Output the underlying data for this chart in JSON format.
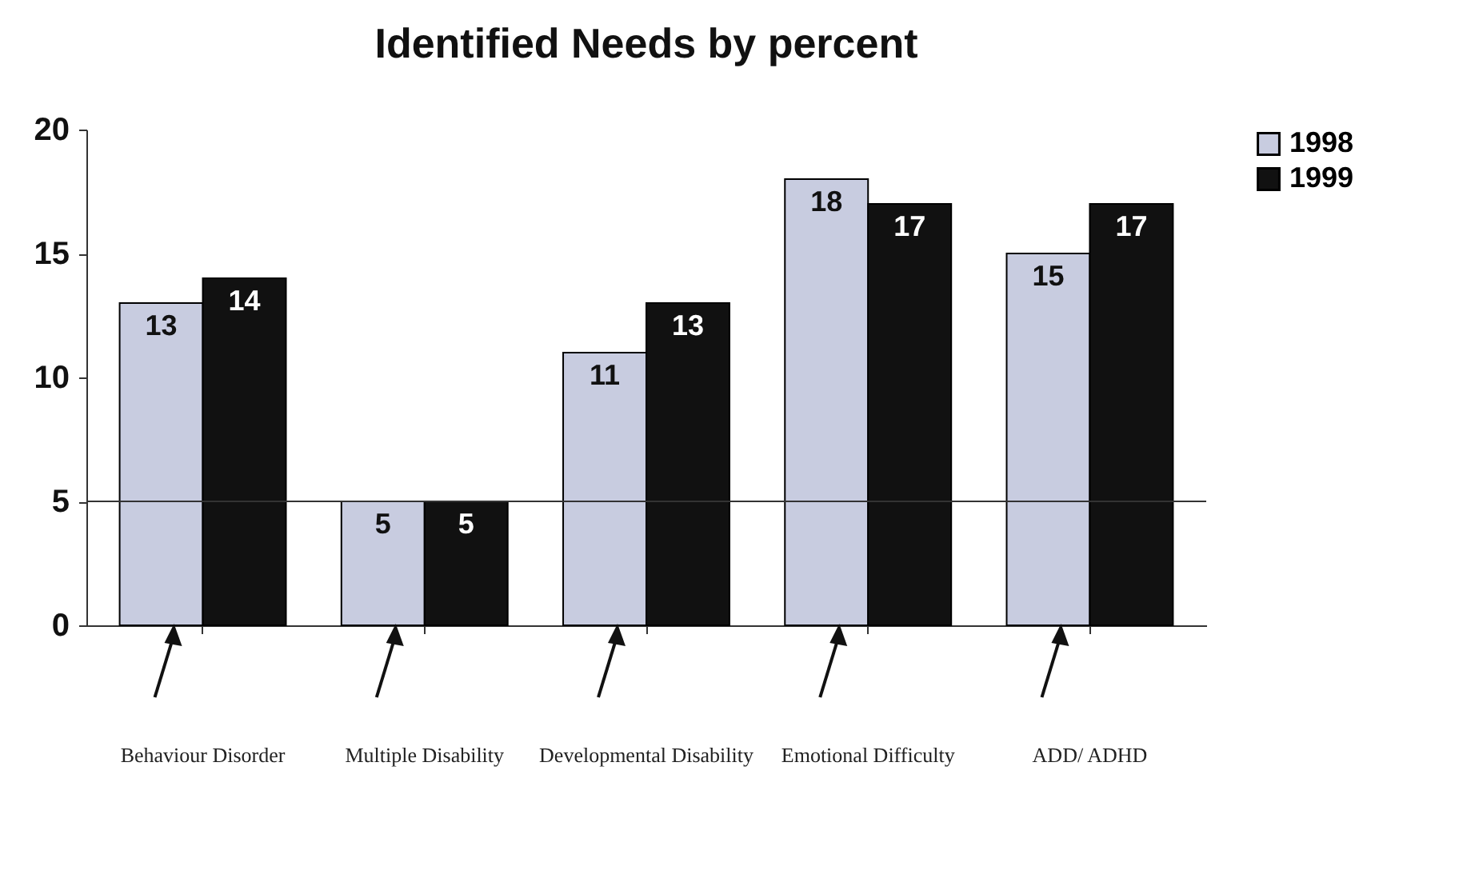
{
  "chart_data": {
    "type": "bar",
    "title": "Identified Needs by percent",
    "categories": [
      "Behaviour Disorder",
      "Multiple Disability",
      "Developmental Disability",
      "Emotional Difficulty",
      "ADD/ ADHD"
    ],
    "series": [
      {
        "name": "1998",
        "color": "#c8cce0",
        "values": [
          13,
          5,
          11,
          18,
          15
        ]
      },
      {
        "name": "1999",
        "color": "#111111",
        "values": [
          14,
          5,
          13,
          17,
          17
        ]
      }
    ],
    "ylim": [
      0,
      20
    ],
    "yticks": [
      0,
      5,
      10,
      15,
      20
    ],
    "grid": false,
    "legend": "right",
    "data_labels": true,
    "ref_lines": [
      {
        "axis": "y",
        "value": 5
      }
    ]
  }
}
